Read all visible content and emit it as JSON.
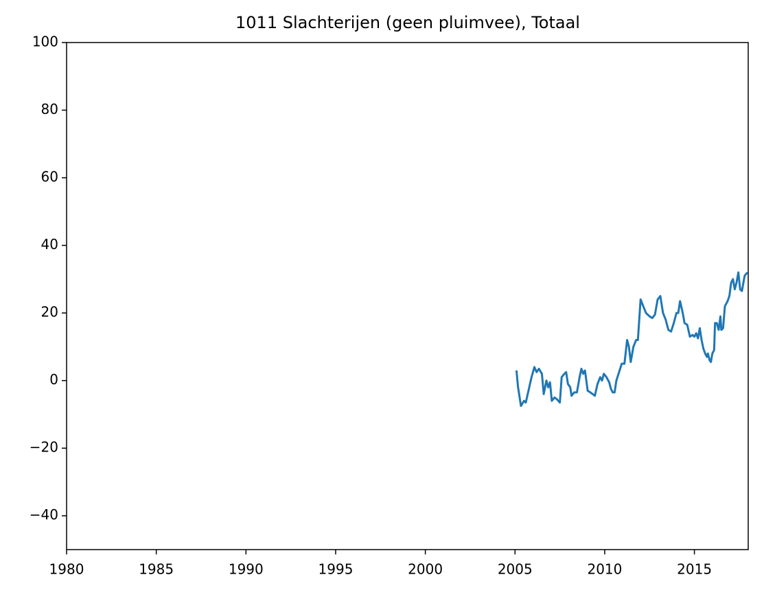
{
  "chart_data": {
    "type": "line",
    "title": "1011 Slachterijen (geen pluimvee), Totaal",
    "x": [
      2005.08,
      2005.17,
      2005.33,
      2005.5,
      2005.6,
      2005.75,
      2005.92,
      2006.08,
      2006.2,
      2006.33,
      2006.5,
      2006.6,
      2006.75,
      2006.85,
      2006.95,
      2007.05,
      2007.2,
      2007.33,
      2007.5,
      2007.6,
      2007.75,
      2007.85,
      2007.95,
      2008.08,
      2008.15,
      2008.3,
      2008.45,
      2008.6,
      2008.7,
      2008.8,
      2008.9,
      2009.05,
      2009.2,
      2009.33,
      2009.45,
      2009.6,
      2009.75,
      2009.85,
      2009.95,
      2010.1,
      2010.25,
      2010.35,
      2010.45,
      2010.55,
      2010.65,
      2010.8,
      2010.95,
      2011.1,
      2011.25,
      2011.35,
      2011.45,
      2011.6,
      2011.75,
      2011.85,
      2012.0,
      2012.15,
      2012.3,
      2012.5,
      2012.65,
      2012.8,
      2012.95,
      2013.1,
      2013.25,
      2013.4,
      2013.55,
      2013.7,
      2013.85,
      2014.0,
      2014.1,
      2014.2,
      2014.35,
      2014.45,
      2014.6,
      2014.75,
      2014.9,
      2015.0,
      2015.1,
      2015.2,
      2015.3,
      2015.4,
      2015.5,
      2015.6,
      2015.7,
      2015.75,
      2015.85,
      2015.92,
      2016.0,
      2016.1,
      2016.15,
      2016.25,
      2016.35,
      2016.45,
      2016.5,
      2016.6,
      2016.7,
      2016.85,
      2016.95,
      2017.05,
      2017.15,
      2017.25,
      2017.35,
      2017.45,
      2017.55,
      2017.65,
      2017.8,
      2017.95
    ],
    "series": [
      {
        "color": "#1f77b4",
        "values": [
          3,
          -2,
          -7.5,
          -6,
          -6.5,
          -3,
          1,
          4,
          2.5,
          3.5,
          2,
          -4,
          0,
          -2,
          -0.5,
          -6,
          -5,
          -5.5,
          -6.5,
          1,
          2,
          2.5,
          -1,
          -2,
          -4.5,
          -3.5,
          -3.5,
          1,
          3.5,
          2,
          3,
          -3,
          -3.5,
          -4,
          -4.5,
          -1,
          1,
          0,
          2,
          1,
          -0.5,
          -2.5,
          -3.5,
          -3.5,
          0,
          2.5,
          5,
          5,
          12,
          10,
          5.5,
          10,
          12,
          12,
          24,
          22,
          20,
          19,
          18.5,
          19.5,
          24,
          25,
          20,
          18,
          15,
          14.5,
          17,
          20,
          20,
          23.5,
          20,
          17,
          16.5,
          13,
          13.5,
          13,
          14,
          12.5,
          15.5,
          12,
          9.5,
          8,
          7,
          8,
          6,
          5.5,
          8,
          9,
          17,
          17,
          15,
          19,
          15,
          15.5,
          22,
          23.5,
          25,
          29,
          30,
          27,
          29,
          32,
          27,
          26.5,
          31,
          32
        ]
      }
    ],
    "xlim": [
      1980,
      2018
    ],
    "xticks": [
      1980,
      1985,
      1990,
      1995,
      2000,
      2005,
      2010,
      2015
    ],
    "ylim": [
      -50,
      100
    ],
    "yticks": [
      {
        "value": -40,
        "label": "−40"
      },
      {
        "value": -20,
        "label": "−20"
      },
      0,
      20,
      40,
      60,
      80,
      100
    ]
  }
}
